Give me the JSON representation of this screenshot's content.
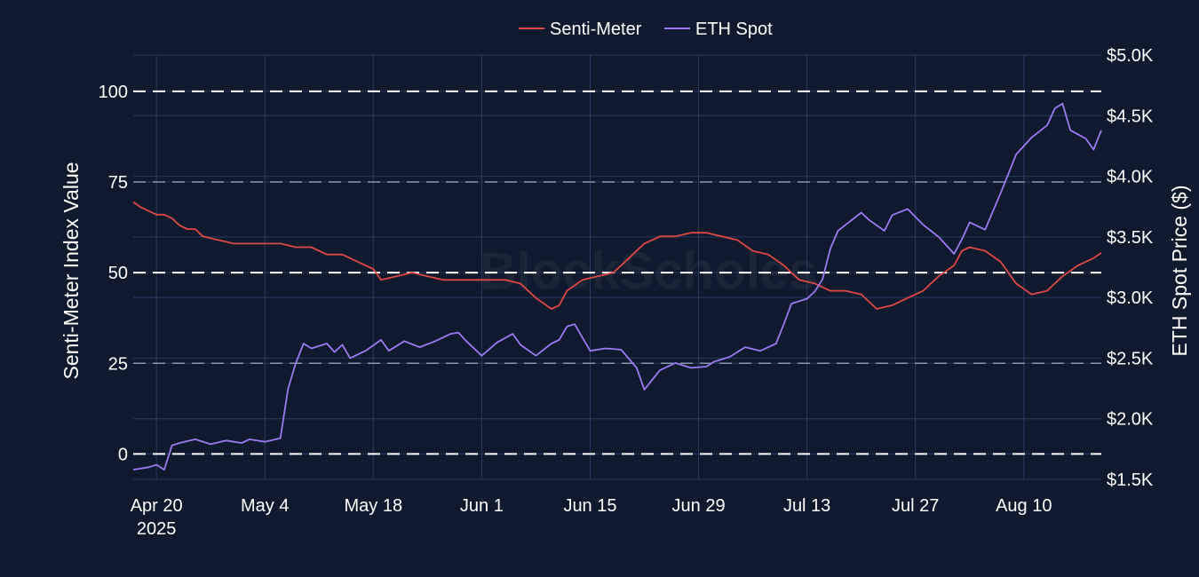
{
  "chart_data": {
    "type": "line",
    "title": "",
    "watermark": "BlockScholes",
    "legend": {
      "placement": "top-center",
      "entries": [
        "Senti-Meter",
        "ETH Spot"
      ]
    },
    "x_axis": {
      "ticks": [
        {
          "date": "2025-04-20",
          "label": "Apr 20",
          "sublabel": "2025"
        },
        {
          "date": "2025-05-04",
          "label": "May 4"
        },
        {
          "date": "2025-05-18",
          "label": "May 18"
        },
        {
          "date": "2025-06-01",
          "label": "Jun 1"
        },
        {
          "date": "2025-06-15",
          "label": "Jun 15"
        },
        {
          "date": "2025-06-29",
          "label": "Jun 29"
        },
        {
          "date": "2025-07-13",
          "label": "Jul 13"
        },
        {
          "date": "2025-07-27",
          "label": "Jul 27"
        },
        {
          "date": "2025-08-10",
          "label": "Aug 10"
        }
      ],
      "range": [
        "2025-04-17",
        "2025-08-20"
      ]
    },
    "y_left": {
      "label": "Senti-Meter Index Value",
      "ticks": [
        0,
        25,
        50,
        75,
        100
      ],
      "range": [
        -7,
        110
      ],
      "reference_lines": [
        0,
        50,
        100
      ]
    },
    "y_right": {
      "label": "ETH Spot Price ($)",
      "ticks": [
        {
          "value": 1500,
          "label": "$1.5K"
        },
        {
          "value": 2000,
          "label": "$2.0K"
        },
        {
          "value": 2500,
          "label": "$2.5K"
        },
        {
          "value": 3000,
          "label": "$3.0K"
        },
        {
          "value": 3500,
          "label": "$3.5K"
        },
        {
          "value": 4000,
          "label": "$4.0K"
        },
        {
          "value": 4500,
          "label": "$4.5K"
        },
        {
          "value": 5000,
          "label": "$5.0K"
        }
      ],
      "range": [
        1500,
        5000
      ]
    },
    "grid": true,
    "series": [
      {
        "name": "Senti-Meter",
        "axis": "left",
        "color": "#e04848",
        "x": [
          "2025-04-17",
          "2025-04-18",
          "2025-04-19",
          "2025-04-20",
          "2025-04-21",
          "2025-04-22",
          "2025-04-23",
          "2025-04-24",
          "2025-04-25",
          "2025-04-26",
          "2025-04-28",
          "2025-04-30",
          "2025-05-02",
          "2025-05-04",
          "2025-05-06",
          "2025-05-08",
          "2025-05-10",
          "2025-05-12",
          "2025-05-14",
          "2025-05-16",
          "2025-05-18",
          "2025-05-19",
          "2025-05-21",
          "2025-05-23",
          "2025-05-25",
          "2025-05-27",
          "2025-05-29",
          "2025-05-31",
          "2025-06-02",
          "2025-06-04",
          "2025-06-06",
          "2025-06-08",
          "2025-06-10",
          "2025-06-11",
          "2025-06-12",
          "2025-06-14",
          "2025-06-16",
          "2025-06-18",
          "2025-06-20",
          "2025-06-22",
          "2025-06-24",
          "2025-06-26",
          "2025-06-28",
          "2025-06-30",
          "2025-07-02",
          "2025-07-04",
          "2025-07-06",
          "2025-07-08",
          "2025-07-10",
          "2025-07-12",
          "2025-07-14",
          "2025-07-16",
          "2025-07-18",
          "2025-07-20",
          "2025-07-22",
          "2025-07-24",
          "2025-07-26",
          "2025-07-28",
          "2025-07-30",
          "2025-08-01",
          "2025-08-02",
          "2025-08-03",
          "2025-08-05",
          "2025-08-07",
          "2025-08-09",
          "2025-08-11",
          "2025-08-13",
          "2025-08-15",
          "2025-08-17",
          "2025-08-19",
          "2025-08-20"
        ],
        "values": [
          69.5,
          68,
          67,
          66,
          66,
          65,
          63,
          62,
          62,
          60,
          59,
          58,
          58,
          58,
          58,
          57,
          57,
          55,
          55,
          53,
          51,
          48,
          49,
          50,
          49,
          48,
          48,
          48,
          48,
          48,
          47,
          43,
          40,
          41,
          45,
          48,
          49,
          50,
          54,
          58,
          60,
          60,
          61,
          61,
          60,
          59,
          56,
          55,
          52,
          48,
          47,
          45,
          45,
          44,
          40,
          41,
          43,
          45,
          49,
          52,
          56,
          57,
          56,
          53,
          47,
          44,
          45,
          49,
          52,
          54,
          55.5
        ]
      },
      {
        "name": "ETH Spot",
        "axis": "right",
        "color": "#9b7cf0",
        "x": [
          "2025-04-17",
          "2025-04-19",
          "2025-04-20",
          "2025-04-21",
          "2025-04-22",
          "2025-04-23",
          "2025-04-25",
          "2025-04-27",
          "2025-04-29",
          "2025-05-01",
          "2025-05-02",
          "2025-05-04",
          "2025-05-06",
          "2025-05-07",
          "2025-05-08",
          "2025-05-09",
          "2025-05-10",
          "2025-05-12",
          "2025-05-13",
          "2025-05-14",
          "2025-05-15",
          "2025-05-17",
          "2025-05-19",
          "2025-05-20",
          "2025-05-22",
          "2025-05-24",
          "2025-05-26",
          "2025-05-28",
          "2025-05-29",
          "2025-05-30",
          "2025-06-01",
          "2025-06-03",
          "2025-06-05",
          "2025-06-06",
          "2025-06-08",
          "2025-06-10",
          "2025-06-11",
          "2025-06-12",
          "2025-06-13",
          "2025-06-15",
          "2025-06-17",
          "2025-06-19",
          "2025-06-21",
          "2025-06-22",
          "2025-06-24",
          "2025-06-26",
          "2025-06-28",
          "2025-06-30",
          "2025-07-01",
          "2025-07-03",
          "2025-07-05",
          "2025-07-07",
          "2025-07-09",
          "2025-07-10",
          "2025-07-11",
          "2025-07-13",
          "2025-07-14",
          "2025-07-15",
          "2025-07-16",
          "2025-07-17",
          "2025-07-18",
          "2025-07-20",
          "2025-07-21",
          "2025-07-23",
          "2025-07-24",
          "2025-07-26",
          "2025-07-28",
          "2025-07-30",
          "2025-08-01",
          "2025-08-02",
          "2025-08-03",
          "2025-08-05",
          "2025-08-07",
          "2025-08-08",
          "2025-08-09",
          "2025-08-11",
          "2025-08-13",
          "2025-08-14",
          "2025-08-15",
          "2025-08-16",
          "2025-08-18",
          "2025-08-19",
          "2025-08-20"
        ],
        "values": [
          1580,
          1600,
          1620,
          1580,
          1780,
          1800,
          1830,
          1790,
          1820,
          1800,
          1830,
          1810,
          1840,
          2250,
          2460,
          2620,
          2580,
          2620,
          2550,
          2610,
          2500,
          2560,
          2650,
          2560,
          2640,
          2590,
          2640,
          2700,
          2710,
          2640,
          2520,
          2630,
          2700,
          2610,
          2520,
          2620,
          2650,
          2760,
          2780,
          2560,
          2580,
          2570,
          2420,
          2240,
          2400,
          2460,
          2420,
          2430,
          2470,
          2510,
          2590,
          2560,
          2620,
          2780,
          2950,
          2990,
          3050,
          3150,
          3400,
          3550,
          3600,
          3700,
          3640,
          3550,
          3680,
          3730,
          3600,
          3500,
          3360,
          3480,
          3620,
          3560,
          3860,
          4020,
          4180,
          4320,
          4420,
          4560,
          4600,
          4380,
          4310,
          4220,
          4380
        ]
      }
    ]
  }
}
